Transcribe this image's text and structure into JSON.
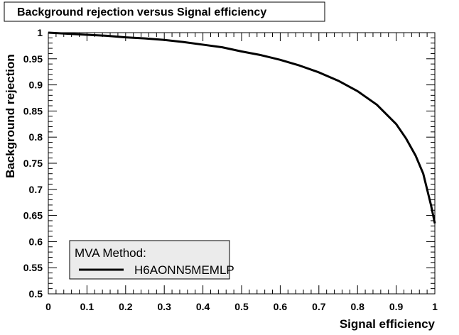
{
  "chart_data": {
    "type": "line",
    "title": "Background rejection versus Signal efficiency",
    "xlabel": "Signal efficiency",
    "ylabel": "Background rejection",
    "xlim": [
      0,
      1
    ],
    "ylim": [
      0.5,
      1
    ],
    "x_ticks": [
      "0",
      "0.1",
      "0.2",
      "0.3",
      "0.4",
      "0.5",
      "0.6",
      "0.7",
      "0.8",
      "0.9",
      "1"
    ],
    "y_ticks": [
      "0.5",
      "0.55",
      "0.6",
      "0.65",
      "0.7",
      "0.75",
      "0.8",
      "0.85",
      "0.9",
      "0.95",
      "1"
    ],
    "grid": false,
    "legend": {
      "header": "MVA Method:",
      "placement": "bottom-left"
    },
    "series": [
      {
        "name": "H6AONN5MEMLP",
        "color": "#000000",
        "x": [
          0,
          0.05,
          0.1,
          0.15,
          0.2,
          0.25,
          0.3,
          0.35,
          0.4,
          0.45,
          0.5,
          0.55,
          0.6,
          0.65,
          0.7,
          0.75,
          0.8,
          0.85,
          0.9,
          0.925,
          0.95,
          0.97,
          0.98,
          0.99,
          1.0
        ],
        "y": [
          1.0,
          0.998,
          0.996,
          0.994,
          0.991,
          0.989,
          0.986,
          0.982,
          0.977,
          0.972,
          0.964,
          0.957,
          0.948,
          0.937,
          0.924,
          0.908,
          0.888,
          0.862,
          0.825,
          0.798,
          0.765,
          0.73,
          0.7,
          0.67,
          0.635
        ]
      }
    ]
  }
}
